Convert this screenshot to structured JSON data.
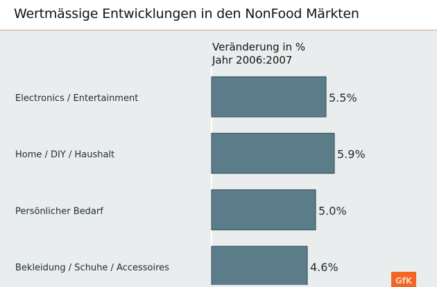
{
  "header": {
    "title": "Wertmässige Entwicklungen in den NonFood Märkten"
  },
  "chart_data": {
    "type": "bar",
    "orientation": "horizontal",
    "title": "Wertmässige Entwicklungen in den NonFood Märkten",
    "subtitle_line1": "Veränderung in %",
    "subtitle_line2": "Jahr 2006:2007",
    "xlabel": "Veränderung in %",
    "ylabel": "",
    "categories": [
      "Electronics / Entertainment",
      "Home / DIY / Haushalt",
      "Persönlicher Bedarf",
      "Bekleidung / Schuhe / Accessoires"
    ],
    "values": [
      5.5,
      5.9,
      5.0,
      4.6
    ],
    "value_labels": [
      "5.5%",
      "5.9%",
      "5.0%",
      "4.6%"
    ],
    "xlim": [
      0,
      10
    ],
    "grid": false,
    "legend": "none",
    "bar_color": "#5b7d8a"
  },
  "logo": {
    "text": "GfK",
    "color": "#f26522"
  }
}
